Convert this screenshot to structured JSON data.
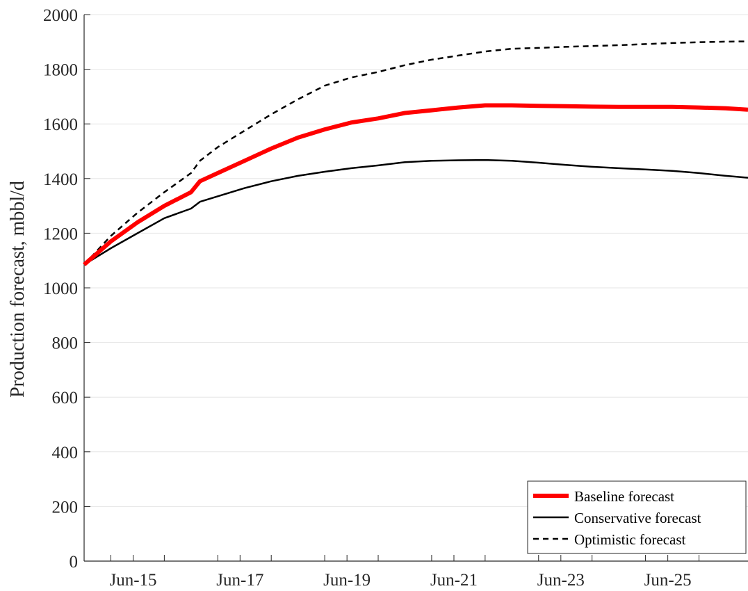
{
  "chart_data": {
    "type": "line",
    "title": "",
    "xlabel": "",
    "ylabel": "Production forecast, mbbl/d",
    "x_tick_labels": [
      "Jun-15",
      "Jun-17",
      "Jun-19",
      "Jun-21",
      "Jun-23",
      "Jun-25"
    ],
    "y_tick_labels": [
      "0",
      "200",
      "400",
      "600",
      "800",
      "1000",
      "1200",
      "1400",
      "1600",
      "1800",
      "2000"
    ],
    "ylim": [
      0,
      2000
    ],
    "xlim": [
      "2014-07",
      "2026-12"
    ],
    "grid": "horizontal",
    "legend_position": "bottom-right",
    "x": [
      "2014-07",
      "2015-01",
      "2015-07",
      "2016-01",
      "2016-07",
      "2016-09",
      "2017-01",
      "2017-07",
      "2018-01",
      "2018-07",
      "2019-01",
      "2019-07",
      "2020-01",
      "2020-07",
      "2021-01",
      "2021-07",
      "2022-01",
      "2022-07",
      "2023-01",
      "2023-07",
      "2024-01",
      "2024-07",
      "2025-01",
      "2025-07",
      "2026-01",
      "2026-07",
      "2026-12"
    ],
    "series": [
      {
        "name": "Baseline forecast",
        "color": "#ff0000",
        "style": "solid-thick",
        "values": [
          1085,
          1170,
          1240,
          1300,
          1350,
          1390,
          1420,
          1465,
          1510,
          1550,
          1580,
          1605,
          1620,
          1640,
          1650,
          1660,
          1668,
          1668,
          1666,
          1665,
          1663,
          1662,
          1662,
          1662,
          1660,
          1657,
          1652
        ]
      },
      {
        "name": "Conservative forecast",
        "color": "#000000",
        "style": "solid",
        "values": [
          1085,
          1145,
          1200,
          1255,
          1290,
          1315,
          1335,
          1365,
          1390,
          1410,
          1425,
          1438,
          1448,
          1460,
          1465,
          1467,
          1468,
          1465,
          1458,
          1450,
          1443,
          1438,
          1433,
          1428,
          1420,
          1410,
          1403
        ]
      },
      {
        "name": "Optimistic forecast",
        "color": "#000000",
        "style": "dashed",
        "values": [
          1085,
          1190,
          1275,
          1350,
          1420,
          1465,
          1515,
          1575,
          1635,
          1690,
          1740,
          1770,
          1790,
          1815,
          1835,
          1850,
          1865,
          1875,
          1878,
          1882,
          1885,
          1888,
          1892,
          1896,
          1899,
          1901,
          1902
        ]
      }
    ]
  }
}
